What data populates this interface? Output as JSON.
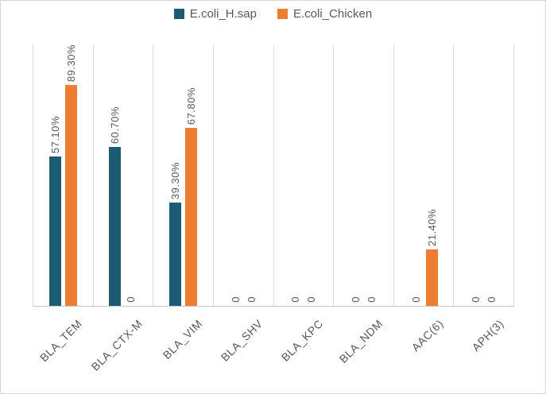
{
  "chart_data": {
    "type": "bar",
    "title": "",
    "categories": [
      "BLA_TEM",
      "BLA_CTX-M",
      "BLA_VIM",
      "BLA_SHV",
      "BLA_KPC",
      "BLA_NDM",
      "AAC(6)",
      "APH(3)"
    ],
    "series": [
      {
        "name": "E.coli_H.sap",
        "color": "#1d5b73",
        "values": [
          57.1,
          60.7,
          39.3,
          0,
          0,
          0,
          0,
          0
        ],
        "labels": [
          "57.10%",
          "60.70%",
          "39.30%",
          "0",
          "0",
          "0",
          "0",
          "0"
        ]
      },
      {
        "name": "E.coli_Chicken",
        "color": "#ed7d31",
        "values": [
          89.3,
          0,
          67.8,
          0,
          0,
          0,
          21.4,
          0
        ],
        "labels": [
          "89.30%",
          "0",
          "67.80%",
          "0",
          "0",
          "0",
          "21.40%",
          "0"
        ]
      }
    ],
    "xlabel": "",
    "ylabel": "",
    "ylim": [
      0,
      100
    ],
    "grid": "vertical-category-separators",
    "legend_position": "top-center",
    "value_label_rotation": 90,
    "category_label_rotation": 45
  },
  "colors": {
    "series1": "#1d5b73",
    "series2": "#ed7d31",
    "gridline": "#d9d9d9",
    "axis_line": "#c6c6c6",
    "text": "#595959",
    "frame_border": "#d6d4d4",
    "background": "#ffffff"
  }
}
